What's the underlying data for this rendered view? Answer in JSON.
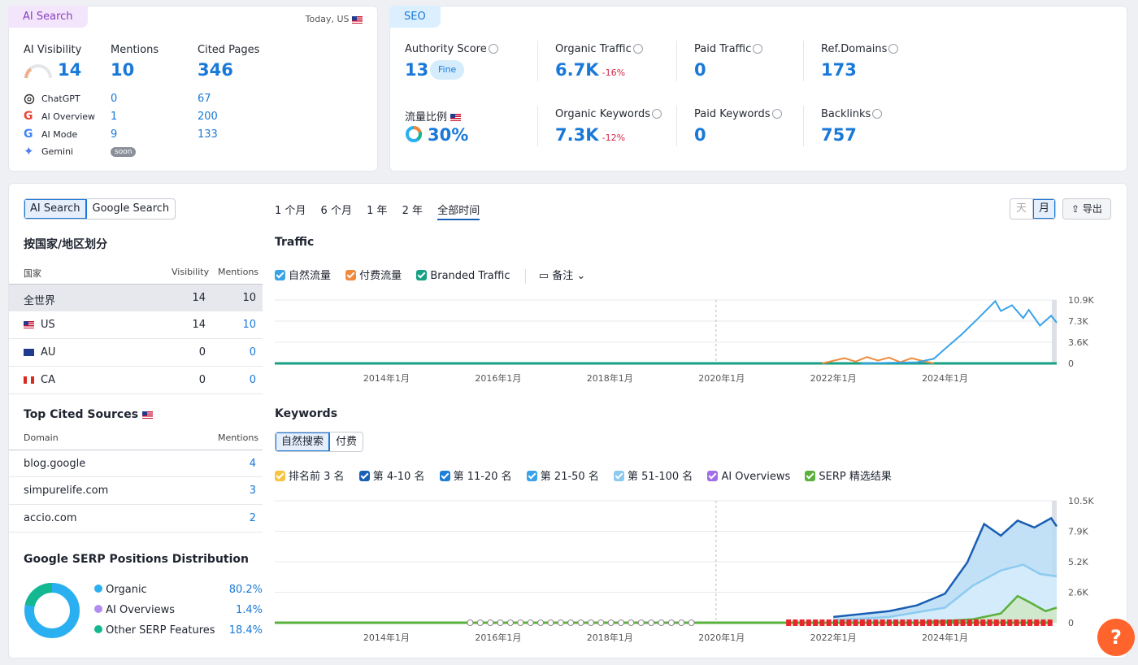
{
  "ai_card": {
    "tag": "AI Search",
    "date_label": "Today, US",
    "metrics": [
      {
        "label": "AI Visibility",
        "value": "14"
      },
      {
        "label": "Mentions",
        "value": "10"
      },
      {
        "label": "Cited Pages",
        "value": "346"
      }
    ],
    "platforms": [
      {
        "name": "ChatGPT",
        "mentions": "0",
        "cited": "67",
        "icon": "chatgpt-icon"
      },
      {
        "name": "AI Overview",
        "mentions": "1",
        "cited": "200",
        "icon": "google-icon"
      },
      {
        "name": "AI Mode",
        "mentions": "9",
        "cited": "133",
        "icon": "google-icon"
      },
      {
        "name": "Gemini",
        "mentions": "soon",
        "cited": "",
        "icon": "gemini-icon"
      }
    ]
  },
  "seo_card": {
    "tag": "SEO",
    "metrics": [
      {
        "label": "Authority Score",
        "value": "13",
        "badge": "Fine",
        "delta": ""
      },
      {
        "label": "Organic Traffic",
        "value": "6.7K",
        "delta": "-16%"
      },
      {
        "label": "Paid Traffic",
        "value": "0",
        "delta": ""
      },
      {
        "label": "Ref.Domains",
        "value": "173",
        "delta": ""
      },
      {
        "label": "流量比例",
        "value": "30%",
        "delta": ""
      },
      {
        "label": "Organic Keywords",
        "value": "7.3K",
        "delta": "-12%"
      },
      {
        "label": "Paid Keywords",
        "value": "0",
        "delta": ""
      },
      {
        "label": "Backlinks",
        "value": "757",
        "delta": ""
      }
    ]
  },
  "left": {
    "search_toggle": [
      "AI Search",
      "Google Search"
    ],
    "country_title": "按国家/地区划分",
    "country_headers": [
      "国家",
      "Visibility",
      "Mentions"
    ],
    "countries": [
      {
        "name": "全世界",
        "visibility": "14",
        "mentions": "10"
      },
      {
        "name": "US",
        "visibility": "14",
        "mentions": "10"
      },
      {
        "name": "AU",
        "visibility": "0",
        "mentions": "0"
      },
      {
        "name": "CA",
        "visibility": "0",
        "mentions": "0"
      }
    ],
    "cited_title": "Top Cited Sources",
    "cited_headers": [
      "Domain",
      "Mentions"
    ],
    "cited": [
      {
        "domain": "blog.google",
        "mentions": "4"
      },
      {
        "domain": "simpurelife.com",
        "mentions": "3"
      },
      {
        "domain": "accio.com",
        "mentions": "2"
      }
    ],
    "serp_title": "Google SERP Positions Distribution",
    "serp": [
      {
        "label": "Organic",
        "value": "80.2%",
        "color": "#2ab0f0"
      },
      {
        "label": "AI Overviews",
        "value": "1.4%",
        "color": "#b38cf0"
      },
      {
        "label": "Other SERP Features",
        "value": "18.4%",
        "color": "#14b890"
      }
    ]
  },
  "range_tabs": [
    "1 个月",
    "6 个月",
    "1 年",
    "2 年",
    "全部时间"
  ],
  "granularity": [
    "天",
    "月"
  ],
  "export_label": "导出",
  "traffic": {
    "title": "Traffic",
    "legend": [
      {
        "label": "自然流量",
        "color": "#3aa3e8"
      },
      {
        "label": "付费流量",
        "color": "#f08a3a"
      },
      {
        "label": "Branded Traffic",
        "color": "#16a084"
      }
    ],
    "notes_label": "备注"
  },
  "keywords": {
    "title": "Keywords",
    "tabs": [
      "自然搜索",
      "付费"
    ],
    "legend": [
      {
        "label": "排名前 3 名",
        "color": "#f5c542"
      },
      {
        "label": "第 4-10 名",
        "color": "#1a5fb4"
      },
      {
        "label": "第 11-20 名",
        "color": "#1e7fd8"
      },
      {
        "label": "第 21-50 名",
        "color": "#3aa3e8"
      },
      {
        "label": "第 51-100 名",
        "color": "#8ccaf0"
      },
      {
        "label": "AI Overviews",
        "color": "#a26ee8"
      },
      {
        "label": "SERP 精选结果",
        "color": "#5ab03c"
      }
    ]
  },
  "chart_data": [
    {
      "type": "line",
      "title": "Traffic",
      "x_ticks": [
        "2014年1月",
        "2016年1月",
        "2018年1月",
        "2020年1月",
        "2022年1月",
        "2024年1月"
      ],
      "y_ticks": [
        "10.9K",
        "7.3K",
        "3.6K",
        "0"
      ],
      "ylim": [
        0,
        10900
      ],
      "series": [
        {
          "name": "自然流量",
          "x": [
            2022.5,
            2023.0,
            2023.5,
            2023.8,
            2024.0,
            2024.3,
            2024.6,
            2024.9,
            2025.0,
            2025.2,
            2025.4,
            2025.5,
            2025.7,
            2025.9,
            2026.0
          ],
          "values": [
            0,
            100,
            200,
            800,
            2500,
            5000,
            7800,
            10700,
            9000,
            10000,
            7800,
            9200,
            6500,
            8200,
            7000
          ]
        },
        {
          "name": "付费流量",
          "x": [
            2021.8,
            2022.2,
            2022.4,
            2022.6,
            2022.8,
            2023.0,
            2023.2,
            2023.4,
            2023.6,
            2023.8
          ],
          "values": [
            0,
            900,
            300,
            1100,
            500,
            1000,
            200,
            900,
            400,
            0
          ]
        },
        {
          "name": "Branded Traffic",
          "x": [
            2012.0,
            2026.0
          ],
          "values": [
            0,
            0
          ]
        }
      ]
    },
    {
      "type": "area",
      "title": "Keywords",
      "x_ticks": [
        "2014年1月",
        "2016年1月",
        "2018年1月",
        "2020年1月",
        "2022年1月",
        "2024年1月"
      ],
      "y_ticks": [
        "10.5K",
        "7.9K",
        "5.2K",
        "2.6K",
        "0"
      ],
      "ylim": [
        0,
        10500
      ],
      "series": [
        {
          "name": "第 4-10 名",
          "x": [
            2022.0,
            2023.0,
            2023.5,
            2024.0,
            2024.4,
            2024.7,
            2025.0,
            2025.3,
            2025.6,
            2025.9,
            2026.0
          ],
          "values": [
            500,
            1000,
            1500,
            2500,
            5200,
            8500,
            7500,
            8800,
            8200,
            9000,
            8300
          ]
        },
        {
          "name": "第 51-100 名",
          "x": [
            2022.0,
            2023.0,
            2024.0,
            2024.5,
            2025.0,
            2025.4,
            2025.7,
            2026.0
          ],
          "values": [
            200,
            500,
            1300,
            3200,
            4500,
            5000,
            4200,
            4000
          ]
        },
        {
          "name": "SERP 精选结果",
          "x": [
            2023.5,
            2024.5,
            2025.0,
            2025.3,
            2025.5,
            2025.8,
            2026.0
          ],
          "values": [
            0,
            300,
            800,
            2300,
            1800,
            1000,
            1300
          ]
        }
      ]
    }
  ]
}
